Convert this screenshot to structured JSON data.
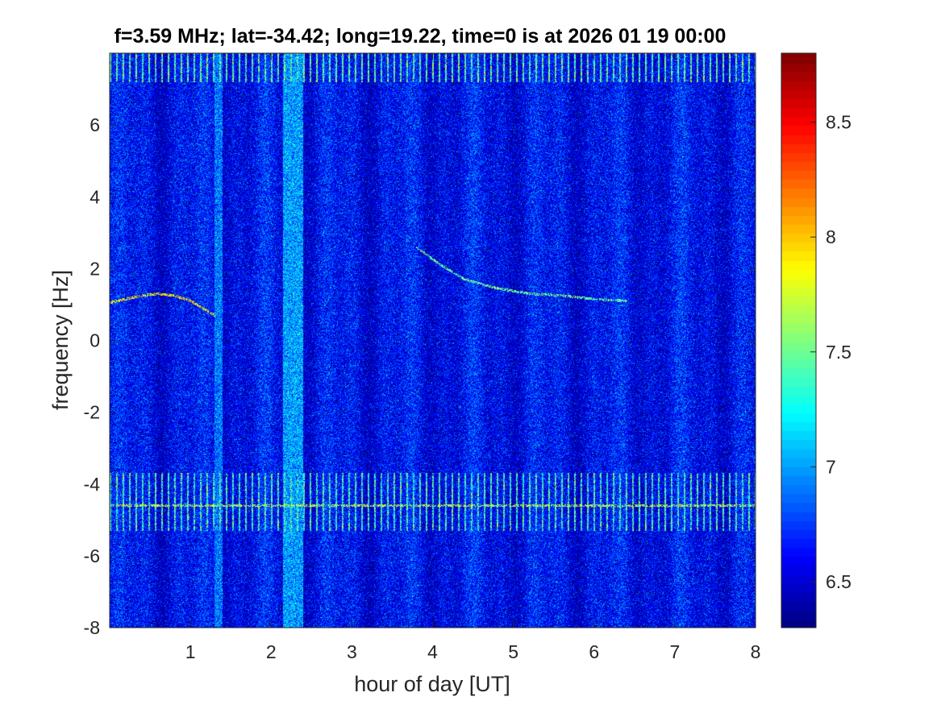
{
  "chart_data": {
    "type": "heatmap",
    "title": "f=3.59 MHz;  lat=-34.42; long=19.22, time=0 is at 2026 01 19 00:00",
    "xlabel": "hour of day [UT]",
    "ylabel": "frequency [Hz]",
    "xlim": [
      0,
      8
    ],
    "ylim": [
      -8,
      8
    ],
    "x_ticks": [
      1,
      2,
      3,
      4,
      5,
      6,
      7,
      8
    ],
    "y_ticks": [
      -8,
      -6,
      -4,
      -2,
      0,
      2,
      4,
      6
    ],
    "colormap": "jet",
    "clim": [
      6.3,
      8.8
    ],
    "colorbar_ticks": [
      6.5,
      7,
      7.5,
      8,
      8.5
    ],
    "grid": false,
    "background_level": 6.6,
    "features": [
      {
        "kind": "horizontal_band",
        "y_range": [
          -5.3,
          -3.7
        ],
        "level": 7.3,
        "note": "interference comb"
      },
      {
        "kind": "horizontal_band",
        "y_range": [
          7.2,
          8.0
        ],
        "level": 7.4,
        "note": "interference comb"
      },
      {
        "kind": "horizontal_line",
        "y": -4.6,
        "level": 7.7
      },
      {
        "kind": "vertical_band",
        "x_range": [
          2.15,
          2.4
        ],
        "level": 7.0
      },
      {
        "kind": "vertical_band",
        "x_range": [
          1.3,
          1.4
        ],
        "level": 6.9
      },
      {
        "kind": "trace",
        "x": [
          0.0,
          0.2,
          0.4,
          0.6,
          0.8,
          1.0,
          1.15,
          1.3
        ],
        "y": [
          1.05,
          1.15,
          1.25,
          1.3,
          1.25,
          1.1,
          0.9,
          0.7
        ],
        "level": 7.9
      },
      {
        "kind": "trace",
        "x": [
          3.8,
          4.1,
          4.4,
          4.8,
          5.2,
          5.6,
          6.0,
          6.4
        ],
        "y": [
          2.6,
          2.1,
          1.7,
          1.45,
          1.3,
          1.25,
          1.15,
          1.1
        ],
        "level": 7.5
      }
    ]
  }
}
